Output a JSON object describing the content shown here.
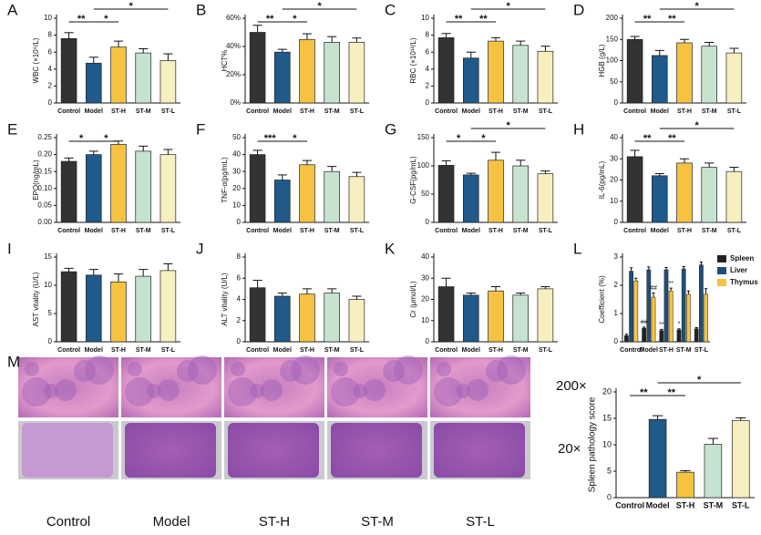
{
  "chart_data": [
    {
      "type": "bar",
      "panel": "A",
      "ylabel": "WBC (×10⁹/L)",
      "categories": [
        "Control",
        "Model",
        "ST-H",
        "ST-M",
        "ST-L"
      ],
      "values": [
        7.6,
        4.7,
        6.6,
        5.9,
        5.0
      ],
      "errors": [
        0.7,
        0.7,
        0.7,
        0.5,
        0.8
      ],
      "colors": [
        "#333333",
        "#1f5a8a",
        "#f5c242",
        "#c5e3cf",
        "#f7efc0"
      ],
      "ylim": [
        0,
        10
      ],
      "yticks": [
        0,
        2,
        4,
        6,
        8,
        10
      ],
      "significance": [
        {
          "from": "Control",
          "to": "Model",
          "text": "**"
        },
        {
          "from": "Model",
          "to": "ST-H",
          "text": "*"
        },
        {
          "from": "Model",
          "to": "ST-L",
          "text": "*"
        }
      ]
    },
    {
      "type": "bar",
      "panel": "B",
      "ylabel": "HCT%",
      "categories": [
        "Control",
        "Model",
        "ST-H",
        "ST-M",
        "ST-L"
      ],
      "values": [
        50,
        36,
        45,
        43,
        43
      ],
      "errors": [
        5,
        2,
        4,
        4,
        3
      ],
      "colors": [
        "#333333",
        "#1f5a8a",
        "#f5c242",
        "#c5e3cf",
        "#f7efc0"
      ],
      "ylim": [
        0,
        60
      ],
      "yticks": [
        {
          "value": 0,
          "label": "0%"
        },
        {
          "value": 20,
          "label": "20%"
        },
        {
          "value": 40,
          "label": "40%"
        },
        {
          "value": 60,
          "label": "60%"
        }
      ],
      "significance": [
        {
          "from": "Control",
          "to": "Model",
          "text": "**"
        },
        {
          "from": "Model",
          "to": "ST-H",
          "text": "*"
        },
        {
          "from": "Model",
          "to": "ST-L",
          "text": "*"
        }
      ]
    },
    {
      "type": "bar",
      "panel": "C",
      "ylabel": "RBC (×10¹²/L)",
      "categories": [
        "Control",
        "Model",
        "ST-H",
        "ST-M",
        "ST-L"
      ],
      "values": [
        7.7,
        5.3,
        7.3,
        6.8,
        6.1
      ],
      "errors": [
        0.5,
        0.7,
        0.4,
        0.5,
        0.6
      ],
      "colors": [
        "#333333",
        "#1f5a8a",
        "#f5c242",
        "#c5e3cf",
        "#f7efc0"
      ],
      "ylim": [
        0,
        10
      ],
      "yticks": [
        0,
        2,
        4,
        6,
        8,
        10
      ],
      "significance": [
        {
          "from": "Control",
          "to": "Model",
          "text": "**"
        },
        {
          "from": "Model",
          "to": "ST-H",
          "text": "**"
        },
        {
          "from": "Model",
          "to": "ST-L",
          "text": "*"
        }
      ]
    },
    {
      "type": "bar",
      "panel": "D",
      "ylabel": "HGB (g/L)",
      "categories": [
        "Control",
        "Model",
        "ST-H",
        "ST-M",
        "ST-L"
      ],
      "values": [
        150,
        112,
        142,
        134,
        118
      ],
      "errors": [
        7,
        12,
        8,
        9,
        11
      ],
      "colors": [
        "#333333",
        "#1f5a8a",
        "#f5c242",
        "#c5e3cf",
        "#f7efc0"
      ],
      "ylim": [
        0,
        200
      ],
      "yticks": [
        0,
        50,
        100,
        150,
        200
      ],
      "significance": [
        {
          "from": "Control",
          "to": "Model",
          "text": "**"
        },
        {
          "from": "Model",
          "to": "ST-H",
          "text": "**"
        },
        {
          "from": "Model",
          "to": "ST-L",
          "text": "*"
        }
      ]
    },
    {
      "type": "bar",
      "panel": "E",
      "ylabel": "EPO(ng/mL)",
      "categories": [
        "Control",
        "Model",
        "ST-H",
        "ST-M",
        "ST-L"
      ],
      "values": [
        0.18,
        0.2,
        0.23,
        0.21,
        0.2
      ],
      "errors": [
        0.01,
        0.01,
        0.01,
        0.015,
        0.015
      ],
      "colors": [
        "#333333",
        "#1f5a8a",
        "#f5c242",
        "#c5e3cf",
        "#f7efc0"
      ],
      "ylim": [
        0,
        0.25
      ],
      "yticks": [
        {
          "value": 0,
          "label": "0.00"
        },
        {
          "value": 0.05,
          "label": "0.05"
        },
        {
          "value": 0.1,
          "label": "0.10"
        },
        {
          "value": 0.15,
          "label": "0.15"
        },
        {
          "value": 0.2,
          "label": "0.20"
        },
        {
          "value": 0.25,
          "label": "0.25"
        }
      ],
      "significance": [
        {
          "from": "Control",
          "to": "Model",
          "text": "*"
        },
        {
          "from": "Model",
          "to": "ST-H",
          "text": "*"
        }
      ]
    },
    {
      "type": "bar",
      "panel": "F",
      "ylabel": "TNF-α(pg/mL)",
      "categories": [
        "Control",
        "Model",
        "ST-H",
        "ST-M",
        "ST-L"
      ],
      "values": [
        40,
        25,
        34,
        30,
        27
      ],
      "errors": [
        2.5,
        3,
        2.5,
        3,
        2.5
      ],
      "colors": [
        "#333333",
        "#1f5a8a",
        "#f5c242",
        "#c5e3cf",
        "#f7efc0"
      ],
      "ylim": [
        0,
        50
      ],
      "yticks": [
        0,
        10,
        20,
        30,
        40,
        50
      ],
      "significance": [
        {
          "from": "Control",
          "to": "Model",
          "text": "***"
        },
        {
          "from": "Model",
          "to": "ST-H",
          "text": "*"
        }
      ]
    },
    {
      "type": "bar",
      "panel": "G",
      "ylabel": "G-CSF(pg/mL)",
      "categories": [
        "Control",
        "Model",
        "ST-H",
        "ST-M",
        "ST-L"
      ],
      "values": [
        101,
        84,
        110,
        100,
        86
      ],
      "errors": [
        8,
        3,
        14,
        10,
        5
      ],
      "colors": [
        "#333333",
        "#1f5a8a",
        "#f5c242",
        "#c5e3cf",
        "#f7efc0"
      ],
      "ylim": [
        0,
        150
      ],
      "yticks": [
        0,
        50,
        100,
        150
      ],
      "significance": [
        {
          "from": "Control",
          "to": "Model",
          "text": "*"
        },
        {
          "from": "Model",
          "to": "ST-H",
          "text": "*"
        },
        {
          "from": "Model",
          "to": "ST-L",
          "text": "*"
        }
      ]
    },
    {
      "type": "bar",
      "panel": "H",
      "ylabel": "IL-6(pg/mL)",
      "categories": [
        "Control",
        "Model",
        "ST-H",
        "ST-M",
        "ST-L"
      ],
      "values": [
        31,
        22,
        28,
        26,
        24
      ],
      "errors": [
        3,
        1,
        2,
        2,
        2
      ],
      "colors": [
        "#333333",
        "#1f5a8a",
        "#f5c242",
        "#c5e3cf",
        "#f7efc0"
      ],
      "ylim": [
        0,
        40
      ],
      "yticks": [
        0,
        10,
        20,
        30,
        40
      ],
      "significance": [
        {
          "from": "Control",
          "to": "Model",
          "text": "**"
        },
        {
          "from": "Model",
          "to": "ST-H",
          "text": "**"
        },
        {
          "from": "Model",
          "to": "ST-L",
          "text": "*"
        }
      ]
    },
    {
      "type": "bar",
      "panel": "I",
      "ylabel": "AST vitality (U/L)",
      "categories": [
        "Control",
        "Model",
        "ST-H",
        "ST-M",
        "ST-L"
      ],
      "values": [
        12.4,
        11.8,
        10.6,
        11.6,
        12.6
      ],
      "errors": [
        0.6,
        1,
        1.4,
        1.2,
        1.2
      ],
      "colors": [
        "#333333",
        "#1f5a8a",
        "#f5c242",
        "#c5e3cf",
        "#f7efc0"
      ],
      "ylim": [
        0,
        15
      ],
      "yticks": [
        0,
        5,
        10,
        15
      ],
      "significance": []
    },
    {
      "type": "bar",
      "panel": "J",
      "ylabel": "ALT vitality (U/L)",
      "categories": [
        "Control",
        "Model",
        "ST-H",
        "ST-M",
        "ST-L"
      ],
      "values": [
        5.1,
        4.3,
        4.5,
        4.6,
        4.0
      ],
      "errors": [
        0.7,
        0.3,
        0.5,
        0.4,
        0.3
      ],
      "colors": [
        "#333333",
        "#1f5a8a",
        "#f5c242",
        "#c5e3cf",
        "#f7efc0"
      ],
      "ylim": [
        0,
        8
      ],
      "yticks": [
        0,
        2,
        4,
        6,
        8
      ],
      "significance": []
    },
    {
      "type": "bar",
      "panel": "K",
      "ylabel": "Cr (μmol/L)",
      "categories": [
        "Control",
        "Model",
        "ST-H",
        "ST-M",
        "ST-L"
      ],
      "values": [
        26,
        22,
        24,
        22,
        25
      ],
      "errors": [
        4,
        1,
        2,
        1,
        1
      ],
      "colors": [
        "#333333",
        "#1f5a8a",
        "#f5c242",
        "#c5e3cf",
        "#f7efc0"
      ],
      "ylim": [
        0,
        40
      ],
      "yticks": [
        0,
        10,
        20,
        30,
        40
      ],
      "significance": []
    },
    {
      "type": "grouped_bar",
      "panel": "L",
      "ylabel": "Coefficient (%)",
      "categories": [
        "Control",
        "Model",
        "ST-H",
        "ST-M",
        "ST-L"
      ],
      "series": [
        {
          "name": "Spleen",
          "color": "#222222",
          "values": [
            0.22,
            0.48,
            0.4,
            0.42,
            0.46
          ],
          "errors": [
            0.05,
            0.04,
            0.04,
            0.04,
            0.04
          ]
        },
        {
          "name": "Liver",
          "color": "#1f4e79",
          "values": [
            2.5,
            2.55,
            2.55,
            2.58,
            2.72
          ],
          "errors": [
            0.12,
            0.1,
            0.08,
            0.08,
            0.1
          ]
        },
        {
          "name": "Thymus",
          "color": "#f5c242",
          "values": [
            2.15,
            1.58,
            1.8,
            1.68,
            1.68
          ],
          "errors": [
            0.1,
            0.15,
            0.1,
            0.12,
            0.2
          ]
        }
      ],
      "ylim": [
        0,
        3
      ],
      "yticks": [
        0,
        1,
        2,
        3
      ],
      "legend": "right",
      "annotations": [
        {
          "series": "Spleen",
          "category": "Model",
          "text": "##"
        },
        {
          "series": "Thymus",
          "category": "Model",
          "text": "##"
        },
        {
          "series": "Spleen",
          "category": "ST-H",
          "text": "**"
        },
        {
          "series": "Thymus",
          "category": "ST-H",
          "text": "**"
        },
        {
          "series": "Spleen",
          "category": "ST-M",
          "text": "*"
        }
      ]
    },
    {
      "type": "bar",
      "panel": "M",
      "ylabel": "Spleen pathology score",
      "categories": [
        "Control",
        "Model",
        "ST-H",
        "ST-M",
        "ST-L"
      ],
      "values": [
        0,
        14.8,
        4.8,
        10.1,
        14.6
      ],
      "errors": [
        0,
        0.7,
        0.3,
        1.1,
        0.5
      ],
      "colors": [
        "#333333",
        "#1f5a8a",
        "#f5c242",
        "#c5e3cf",
        "#f7efc0"
      ],
      "ylim": [
        0,
        20
      ],
      "yticks": [
        0,
        5,
        10,
        15,
        20
      ],
      "significance": [
        {
          "from": "Control",
          "to": "Model",
          "text": "**"
        },
        {
          "from": "Model",
          "to": "ST-H",
          "text": "**"
        },
        {
          "from": "Model",
          "to": "ST-L",
          "text": "*"
        }
      ]
    }
  ],
  "micrographs": {
    "captions": [
      "Control",
      "Model",
      "ST-H",
      "ST-M",
      "ST-L"
    ],
    "magnifications": [
      "200×",
      "20×"
    ]
  }
}
